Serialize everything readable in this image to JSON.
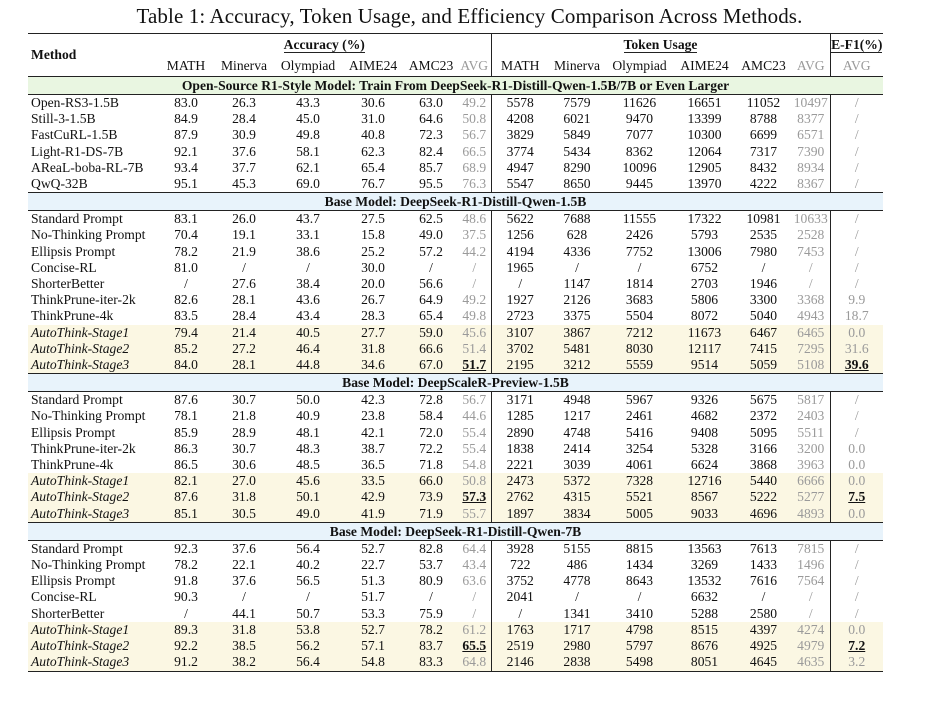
{
  "caption": "Table 1: Accuracy, Token Usage, and Efficiency Comparison Across Methods.",
  "headers": {
    "method": "Method",
    "accuracy_group": "Accuracy (%)",
    "token_group": "Token Usage",
    "ef1_group": "E-F1(%)",
    "accuracy_cols": [
      "MATH",
      "Minerva",
      "Olympiad",
      "AIME24",
      "AMC23",
      "AVG"
    ],
    "token_cols": [
      "MATH",
      "Minerva",
      "Olympiad",
      "AIME24",
      "AMC23",
      "AVG"
    ],
    "ef1_cols": [
      "AVG"
    ]
  },
  "sections": [
    {
      "title": "Open-Source R1-Style Model: Train From DeepSeek-R1-Distill-Qwen-1.5B/7B or Even Larger",
      "rows": [
        {
          "method": "Open-RS3-1.5B",
          "acc": [
            "83.0",
            "26.3",
            "43.3",
            "30.6",
            "63.0",
            "49.2"
          ],
          "tok": [
            "5578",
            "7579",
            "11626",
            "16651",
            "11052",
            "10497"
          ],
          "ef1": "/"
        },
        {
          "method": "Still-3-1.5B",
          "acc": [
            "84.9",
            "28.4",
            "45.0",
            "31.0",
            "64.6",
            "50.8"
          ],
          "tok": [
            "4208",
            "6021",
            "9470",
            "13399",
            "8788",
            "8377"
          ],
          "ef1": "/"
        },
        {
          "method": "FastCuRL-1.5B",
          "acc": [
            "87.9",
            "30.9",
            "49.8",
            "40.8",
            "72.3",
            "56.7"
          ],
          "tok": [
            "3829",
            "5849",
            "7077",
            "10300",
            "6699",
            "6571"
          ],
          "ef1": "/"
        },
        {
          "method": "Light-R1-DS-7B",
          "acc": [
            "92.1",
            "37.6",
            "58.1",
            "62.3",
            "82.4",
            "66.5"
          ],
          "tok": [
            "3774",
            "5434",
            "8362",
            "12064",
            "7317",
            "7390"
          ],
          "ef1": "/"
        },
        {
          "method": "AReaL-boba-RL-7B",
          "acc": [
            "93.4",
            "37.7",
            "62.1",
            "65.4",
            "85.7",
            "68.9"
          ],
          "tok": [
            "4947",
            "8290",
            "10096",
            "12905",
            "8432",
            "8934"
          ],
          "ef1": "/"
        },
        {
          "method": "QwQ-32B",
          "acc": [
            "95.1",
            "45.3",
            "69.0",
            "76.7",
            "95.5",
            "76.3"
          ],
          "tok": [
            "5547",
            "8650",
            "9445",
            "13970",
            "4222",
            "8367"
          ],
          "ef1": "/"
        }
      ]
    },
    {
      "title": "Base Model: DeepSeek-R1-Distill-Qwen-1.5B",
      "rows": [
        {
          "method": "Standard Prompt",
          "acc": [
            "83.1",
            "26.0",
            "43.7",
            "27.5",
            "62.5",
            "48.6"
          ],
          "tok": [
            "5622",
            "7688",
            "11555",
            "17322",
            "10981",
            "10633"
          ],
          "ef1": "/"
        },
        {
          "method": "No-Thinking Prompt",
          "acc": [
            "70.4",
            "19.1",
            "33.1",
            "15.8",
            "49.0",
            "37.5"
          ],
          "tok": [
            "1256",
            "628",
            "2426",
            "5793",
            "2535",
            "2528"
          ],
          "ef1": "/"
        },
        {
          "method": "Ellipsis Prompt",
          "acc": [
            "78.2",
            "21.9",
            "38.6",
            "25.2",
            "57.2",
            "44.2"
          ],
          "tok": [
            "4194",
            "4336",
            "7752",
            "13006",
            "7980",
            "7453"
          ],
          "ef1": "/"
        },
        {
          "method": "Concise-RL",
          "acc": [
            "81.0",
            "/",
            "/",
            "30.0",
            "/",
            "/"
          ],
          "tok": [
            "1965",
            "/",
            "/",
            "6752",
            "/",
            "/"
          ],
          "ef1": "/"
        },
        {
          "method": "ShorterBetter",
          "acc": [
            "/",
            "27.6",
            "38.4",
            "20.0",
            "56.6",
            "/"
          ],
          "tok": [
            "/",
            "1147",
            "1814",
            "2703",
            "1946",
            "/"
          ],
          "ef1": "/"
        },
        {
          "method": "ThinkPrune-iter-2k",
          "acc": [
            "82.6",
            "28.1",
            "43.6",
            "26.7",
            "64.9",
            "49.2"
          ],
          "tok": [
            "1927",
            "2126",
            "3683",
            "5806",
            "3300",
            "3368"
          ],
          "ef1": "9.9"
        },
        {
          "method": "ThinkPrune-4k",
          "acc": [
            "83.5",
            "28.4",
            "43.4",
            "28.3",
            "65.4",
            "49.8"
          ],
          "tok": [
            "2723",
            "3375",
            "5504",
            "8072",
            "5040",
            "4943"
          ],
          "ef1": "18.7"
        },
        {
          "method": "AutoThink-Stage1",
          "ours": true,
          "acc": [
            "79.4",
            "21.4",
            "40.5",
            "27.7",
            "59.0",
            "45.6"
          ],
          "tok": [
            "3107",
            "3867",
            "7212",
            "11673",
            "6467",
            "6465"
          ],
          "ef1": "0.0"
        },
        {
          "method": "AutoThink-Stage2",
          "ours": true,
          "acc": [
            "85.2",
            "27.2",
            "46.4",
            "31.8",
            "66.6",
            "51.4"
          ],
          "tok": [
            "3702",
            "5481",
            "8030",
            "12117",
            "7415",
            "7295"
          ],
          "ef1": "31.6"
        },
        {
          "method": "AutoThink-Stage3",
          "ours": true,
          "acc": [
            "84.0",
            "28.1",
            "44.8",
            "34.6",
            "67.0",
            "51.7"
          ],
          "tok": [
            "2195",
            "3212",
            "5559",
            "9514",
            "5059",
            "5108"
          ],
          "ef1": "39.6",
          "best_acc": true,
          "best_ef1": true
        }
      ]
    },
    {
      "title": "Base Model: DeepScaleR-Preview-1.5B",
      "rows": [
        {
          "method": "Standard Prompt",
          "acc": [
            "87.6",
            "30.7",
            "50.0",
            "42.3",
            "72.8",
            "56.7"
          ],
          "tok": [
            "3171",
            "4948",
            "5967",
            "9326",
            "5675",
            "5817"
          ],
          "ef1": "/"
        },
        {
          "method": "No-Thinking Prompt",
          "acc": [
            "78.1",
            "21.8",
            "40.9",
            "23.8",
            "58.4",
            "44.6"
          ],
          "tok": [
            "1285",
            "1217",
            "2461",
            "4682",
            "2372",
            "2403"
          ],
          "ef1": "/"
        },
        {
          "method": "Ellipsis Prompt",
          "acc": [
            "85.9",
            "28.9",
            "48.1",
            "42.1",
            "72.0",
            "55.4"
          ],
          "tok": [
            "2890",
            "4748",
            "5416",
            "9408",
            "5095",
            "5511"
          ],
          "ef1": "/"
        },
        {
          "method": "ThinkPrune-iter-2k",
          "acc": [
            "86.3",
            "30.7",
            "48.3",
            "38.7",
            "72.2",
            "55.4"
          ],
          "tok": [
            "1838",
            "2414",
            "3254",
            "5328",
            "3166",
            "3200"
          ],
          "ef1": "0.0"
        },
        {
          "method": "ThinkPrune-4k",
          "acc": [
            "86.5",
            "30.6",
            "48.5",
            "36.5",
            "71.8",
            "54.8"
          ],
          "tok": [
            "2221",
            "3039",
            "4061",
            "6624",
            "3868",
            "3963"
          ],
          "ef1": "0.0"
        },
        {
          "method": "AutoThink-Stage1",
          "ours": true,
          "acc": [
            "82.1",
            "27.0",
            "45.6",
            "33.5",
            "66.0",
            "50.8"
          ],
          "tok": [
            "2473",
            "5372",
            "7328",
            "12716",
            "5440",
            "6666"
          ],
          "ef1": "0.0"
        },
        {
          "method": "AutoThink-Stage2",
          "ours": true,
          "acc": [
            "87.6",
            "31.8",
            "50.1",
            "42.9",
            "73.9",
            "57.3"
          ],
          "tok": [
            "2762",
            "4315",
            "5521",
            "8567",
            "5222",
            "5277"
          ],
          "ef1": "7.5",
          "best_acc": true,
          "best_ef1": true
        },
        {
          "method": "AutoThink-Stage3",
          "ours": true,
          "acc": [
            "85.1",
            "30.5",
            "49.0",
            "41.9",
            "71.9",
            "55.7"
          ],
          "tok": [
            "1897",
            "3834",
            "5005",
            "9033",
            "4696",
            "4893"
          ],
          "ef1": "0.0"
        }
      ]
    },
    {
      "title": "Base Model: DeepSeek-R1-Distill-Qwen-7B",
      "rows": [
        {
          "method": "Standard Prompt",
          "acc": [
            "92.3",
            "37.6",
            "56.4",
            "52.7",
            "82.8",
            "64.4"
          ],
          "tok": [
            "3928",
            "5155",
            "8815",
            "13563",
            "7613",
            "7815"
          ],
          "ef1": "/"
        },
        {
          "method": "No-Thinking Prompt",
          "acc": [
            "78.2",
            "22.1",
            "40.2",
            "22.7",
            "53.7",
            "43.4"
          ],
          "tok": [
            "722",
            "486",
            "1434",
            "3269",
            "1433",
            "1496"
          ],
          "ef1": "/"
        },
        {
          "method": "Ellipsis Prompt",
          "acc": [
            "91.8",
            "37.6",
            "56.5",
            "51.3",
            "80.9",
            "63.6"
          ],
          "tok": [
            "3752",
            "4778",
            "8643",
            "13532",
            "7616",
            "7564"
          ],
          "ef1": "/"
        },
        {
          "method": "Concise-RL",
          "acc": [
            "90.3",
            "/",
            "/",
            "51.7",
            "/",
            "/"
          ],
          "tok": [
            "2041",
            "/",
            "/",
            "6632",
            "/",
            "/"
          ],
          "ef1": "/"
        },
        {
          "method": "ShorterBetter",
          "acc": [
            "/",
            "44.1",
            "50.7",
            "53.3",
            "75.9",
            "/"
          ],
          "tok": [
            "/",
            "1341",
            "3410",
            "5288",
            "2580",
            "/"
          ],
          "ef1": "/"
        },
        {
          "method": "AutoThink-Stage1",
          "ours": true,
          "acc": [
            "89.3",
            "31.8",
            "53.8",
            "52.7",
            "78.2",
            "61.2"
          ],
          "tok": [
            "1763",
            "1717",
            "4798",
            "8515",
            "4397",
            "4274"
          ],
          "ef1": "0.0"
        },
        {
          "method": "AutoThink-Stage2",
          "ours": true,
          "acc": [
            "92.2",
            "38.5",
            "56.2",
            "57.1",
            "83.7",
            "65.5"
          ],
          "tok": [
            "2519",
            "2980",
            "5797",
            "8676",
            "4925",
            "4979"
          ],
          "ef1": "7.2",
          "best_acc": true,
          "best_ef1": true
        },
        {
          "method": "AutoThink-Stage3",
          "ours": true,
          "acc": [
            "91.2",
            "38.2",
            "56.4",
            "54.8",
            "83.3",
            "64.8"
          ],
          "tok": [
            "2146",
            "2838",
            "5498",
            "8051",
            "4645",
            "4635"
          ],
          "ef1": "3.2"
        }
      ]
    }
  ]
}
